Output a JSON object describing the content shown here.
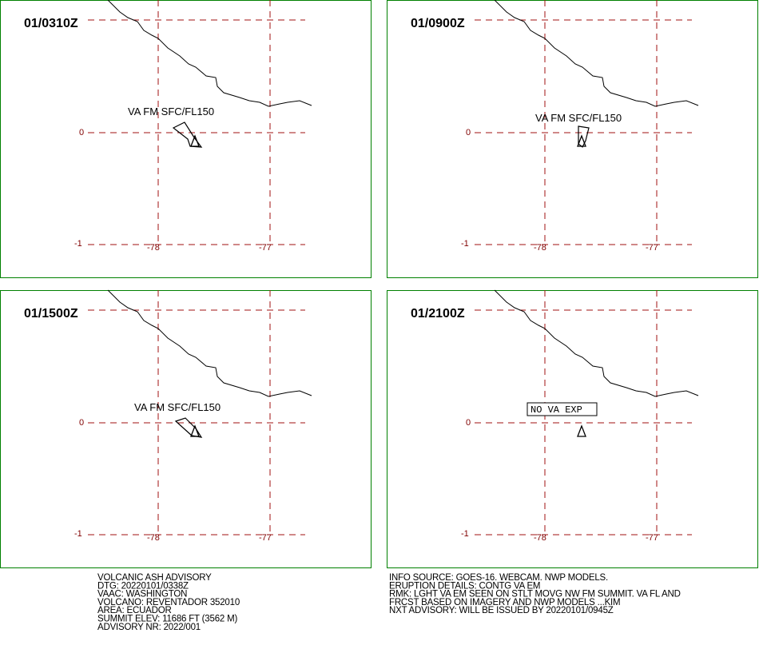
{
  "panels": [
    {
      "time": "01/0310Z",
      "annotation": "VA FM SFC/FL150"
    },
    {
      "time": "01/0900Z",
      "annotation": "VA FM SFC/FL150"
    },
    {
      "time": "01/1500Z",
      "annotation": "VA FM SFC/FL150"
    },
    {
      "time": "01/2100Z",
      "annotation": "NO VA EXP",
      "boxed": true
    }
  ],
  "grid_labels": {
    "lat": [
      "0",
      "-1"
    ],
    "lon": [
      "-78",
      "-77"
    ]
  },
  "info_left": [
    "VOLCANIC ASH ADVISORY",
    "DTG: 20220101/0338Z",
    "VAAC: WASHINGTON",
    "VOLCANO: REVENTADOR 352010",
    "AREA: ECUADOR",
    "SUMMIT ELEV: 11686 FT (3562 M)",
    "ADVISORY NR: 2022/001"
  ],
  "info_right": [
    "INFO SOURCE: GOES-16. WEBCAM. NWP MODELS.",
    "ERUPTION DETAILS: CONTG VA EM",
    "RMK: LGHT VA EM SEEN ON STLT MOVG NW FM SUMMIT. VA FL AND",
    "FRCST BASED ON IMAGERY AND NWP MODELS ...KIM",
    "NXT ADVISORY: WILL BE ISSUED BY 20220101/0945Z"
  ]
}
